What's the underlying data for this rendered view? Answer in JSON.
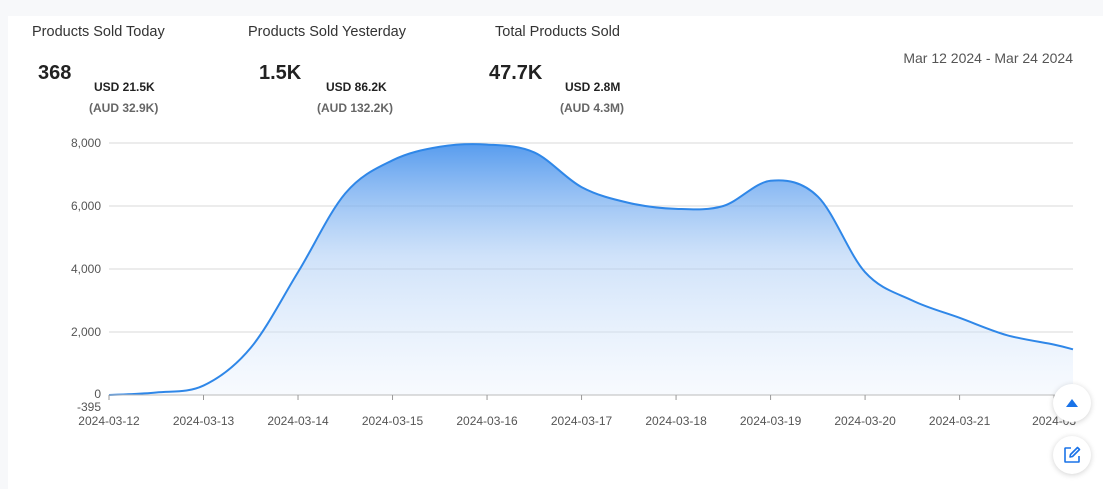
{
  "stats": [
    {
      "title": "Products Sold Today",
      "value": "368",
      "usd": "USD 21.5K",
      "aud": "(AUD 32.9K)"
    },
    {
      "title": "Products Sold Yesterday",
      "value": "1.5K",
      "usd": "USD 86.2K",
      "aud": "(AUD 132.2K)"
    },
    {
      "title": "Total Products Sold",
      "value": "47.7K",
      "usd": "USD 2.8M",
      "aud": "(AUD 4.3M)"
    }
  ],
  "date_range": "Mar 12 2024 - Mar 24 2024",
  "buttons": {
    "scroll_top_icon": "arrow-up-icon",
    "edit_icon": "edit-icon"
  },
  "colors": {
    "line": "#2f87e8",
    "fill_top": "#3b8beb",
    "grid": "#d9d9d9",
    "accent_button": "#1a73e8"
  },
  "chart_data": {
    "type": "area",
    "title": "",
    "xlabel": "",
    "ylabel": "",
    "ylim": [
      -395,
      8000
    ],
    "yticks": [
      8000,
      6000,
      4000,
      2000,
      0,
      -395
    ],
    "ytick_labels": [
      "8,000",
      "6,000",
      "4,000",
      "2,000",
      "0",
      "-395"
    ],
    "x_tick_labels": [
      "2024-03-12",
      "2024-03-13",
      "2024-03-14",
      "2024-03-15",
      "2024-03-16",
      "2024-03-17",
      "2024-03-18",
      "2024-03-19",
      "2024-03-20",
      "2024-03-21",
      "2024-03"
    ],
    "x": [
      "2024-03-12",
      "2024-03-12 12:00",
      "2024-03-13",
      "2024-03-13 12:00",
      "2024-03-14",
      "2024-03-14 12:00",
      "2024-03-15",
      "2024-03-15 12:00",
      "2024-03-16",
      "2024-03-16 12:00",
      "2024-03-17",
      "2024-03-17 12:00",
      "2024-03-18",
      "2024-03-18 12:00",
      "2024-03-19",
      "2024-03-19 12:00",
      "2024-03-20",
      "2024-03-20 12:00",
      "2024-03-21",
      "2024-03-21 12:00",
      "2024-03-22",
      "2024-03-22 07:00"
    ],
    "values": [
      0,
      80,
      300,
      1500,
      3900,
      6400,
      7450,
      7880,
      7950,
      7700,
      6600,
      6100,
      5910,
      6000,
      6800,
      6300,
      3900,
      3000,
      2450,
      1900,
      1600,
      1450
    ]
  }
}
